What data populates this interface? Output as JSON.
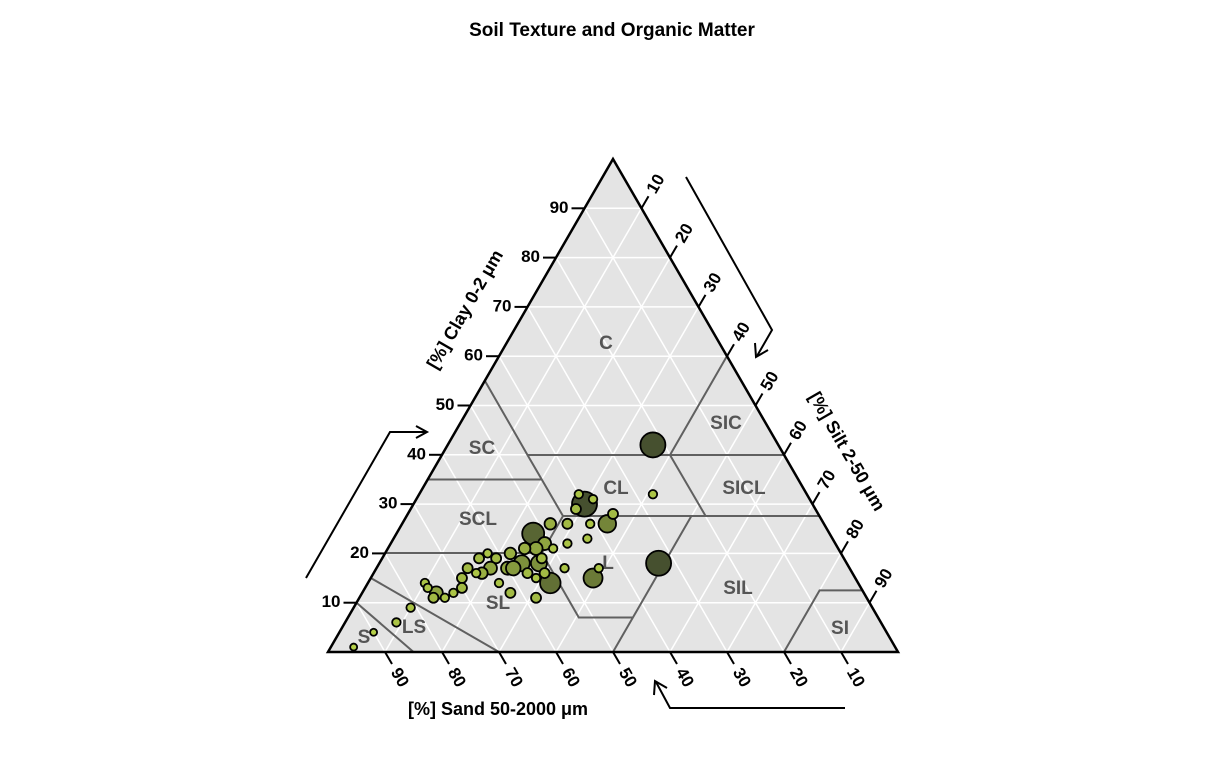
{
  "chart_data": {
    "type": "ternary",
    "title": "Soil Texture and Organic Matter",
    "clay_label": "[%] Clay 0-2 μm",
    "silt_label": "[%] Silt 2-50 μm",
    "sand_label": "[%] Sand 50-2000 μm",
    "lim": [
      0,
      100
    ],
    "clay_ticks": [
      10,
      20,
      30,
      40,
      50,
      60,
      70,
      80,
      90
    ],
    "silt_ticks": [
      10,
      20,
      30,
      40,
      50,
      60,
      70,
      80,
      90
    ],
    "sand_ticks": [
      10,
      20,
      30,
      40,
      50,
      60,
      70,
      80,
      90
    ],
    "grid": true,
    "classes": [
      "C",
      "SIC",
      "SC",
      "CL",
      "SICL",
      "SCL",
      "L",
      "SIL",
      "SL",
      "LS",
      "S",
      "SI"
    ],
    "color_low": "#b4cf48",
    "color_high": "#46502f",
    "sand": [
      22,
      33,
      40,
      52,
      54,
      46,
      38,
      27,
      40,
      38,
      42,
      36,
      45,
      41,
      48,
      43,
      47,
      51,
      53,
      54,
      57,
      60,
      58,
      55,
      61,
      62,
      64,
      67,
      63,
      65,
      66,
      69,
      70,
      72,
      50,
      44,
      56,
      62,
      58,
      54,
      75,
      76,
      74,
      76,
      76,
      81,
      85,
      90,
      95,
      59,
      57,
      63,
      53,
      50
    ],
    "silt": [
      36,
      49,
      30,
      24,
      32,
      39,
      36,
      41,
      28,
      31,
      29,
      36,
      29,
      33,
      26,
      34,
      31,
      27,
      26,
      28,
      25,
      23,
      22,
      24,
      20,
      18,
      17,
      16,
      20,
      19,
      18,
      16,
      17,
      16,
      33,
      39,
      29,
      26,
      31,
      30,
      13,
      13,
      15,
      10,
      11,
      10,
      9,
      6,
      4,
      24,
      27,
      23,
      28,
      29
    ],
    "clay": [
      42,
      18,
      30,
      24,
      14,
      15,
      26,
      32,
      32,
      31,
      29,
      28,
      26,
      26,
      26,
      23,
      22,
      22,
      21,
      18,
      18,
      17,
      20,
      21,
      19,
      20,
      19,
      17,
      17,
      16,
      16,
      15,
      13,
      12,
      17,
      17,
      15,
      12,
      11,
      16,
      12,
      11,
      11,
      14,
      13,
      9,
      6,
      4,
      1,
      17,
      16,
      14,
      19,
      21
    ],
    "organic_matter": [
      7,
      7,
      7,
      6,
      5.5,
      5,
      4.5,
      1.5,
      1.5,
      1.5,
      2,
      2,
      2,
      1.5,
      2.5,
      1.5,
      1.5,
      3,
      3,
      4,
      4,
      3,
      2.5,
      2.5,
      2,
      1.5,
      2,
      2,
      3,
      2.5,
      1.5,
      2,
      2,
      1.5,
      1.5,
      1.5,
      1.5,
      2,
      2,
      2,
      3,
      2,
      1.5,
      1.5,
      1.5,
      1.5,
      1.5,
      1,
      1,
      3.5,
      2,
      1.5,
      2,
      1.5
    ]
  }
}
